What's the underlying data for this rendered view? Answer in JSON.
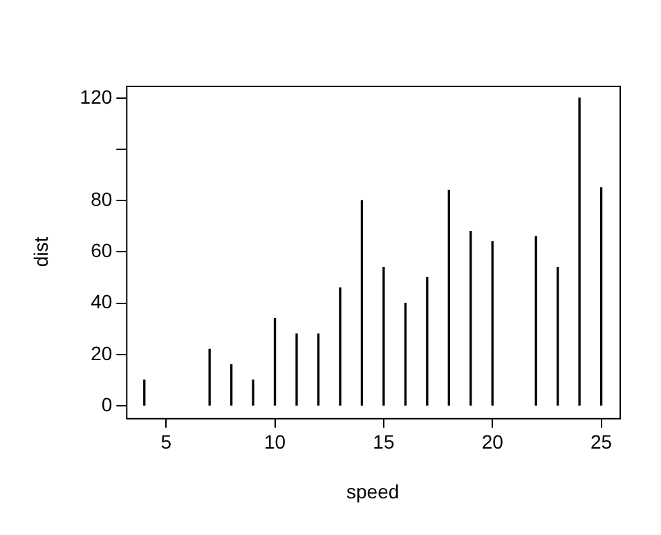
{
  "chart_data": {
    "type": "bar",
    "xlabel": "speed",
    "ylabel": "dist",
    "x": [
      4,
      7,
      8,
      9,
      10,
      11,
      12,
      13,
      14,
      15,
      16,
      17,
      18,
      19,
      20,
      22,
      23,
      24,
      25
    ],
    "values": [
      10,
      22,
      16,
      10,
      34,
      28,
      28,
      46,
      80,
      54,
      40,
      50,
      84,
      68,
      64,
      66,
      54,
      120,
      85
    ],
    "color": "#000000",
    "xlim": [
      3.16,
      25.84
    ],
    "xticks": [
      5,
      10,
      15,
      20,
      25
    ],
    "ylim": [
      -4.8,
      124.8
    ],
    "yticks": [
      0,
      20,
      40,
      60,
      80,
      {
        "value": 100,
        "label": null
      },
      120
    ],
    "grid": false,
    "legend": false
  }
}
